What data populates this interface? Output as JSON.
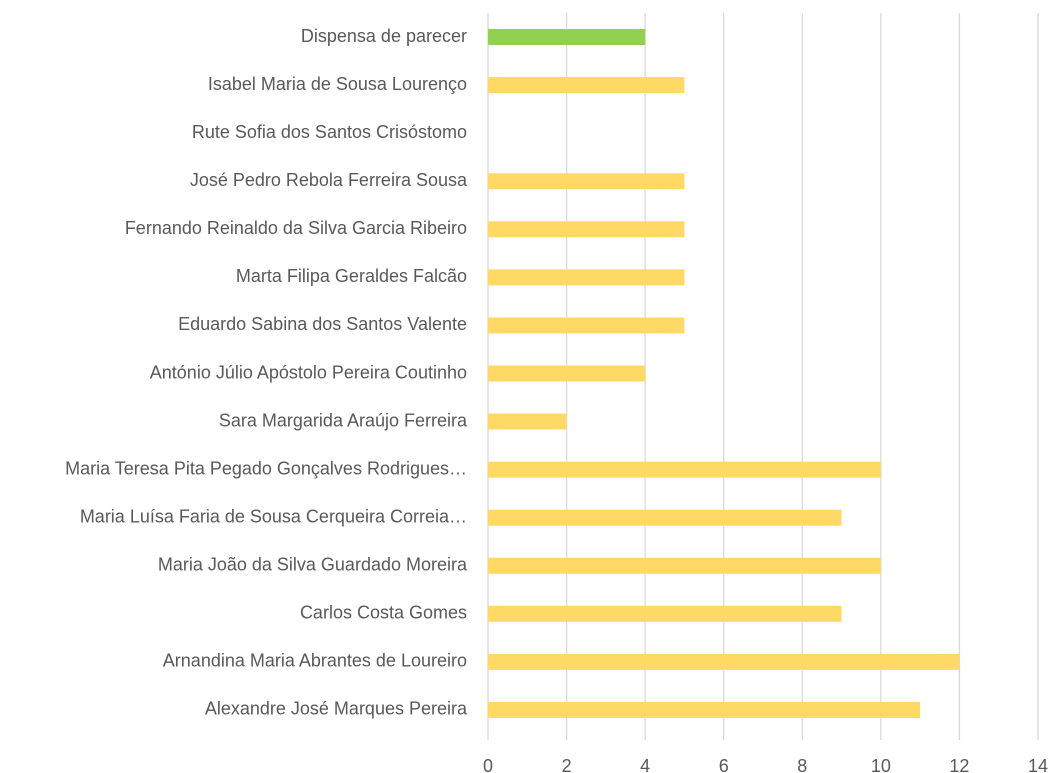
{
  "chart_data": {
    "type": "barh",
    "categories": [
      "Dispensa de parecer",
      "Isabel Maria de Sousa Lourenço",
      "Rute Sofia dos Santos Crisóstomo",
      "José Pedro Rebola Ferreira Sousa",
      "Fernando Reinaldo da Silva Garcia Ribeiro",
      "Marta Filipa Geraldes Falcão",
      "Eduardo Sabina dos Santos Valente",
      "António Júlio Apóstolo Pereira Coutinho",
      "Sara Margarida Araújo Ferreira",
      "Maria Teresa Pita Pegado Gonçalves Rodrigues…",
      "Maria Luísa Faria de Sousa Cerqueira Correia…",
      "Maria João da Silva Guardado Moreira",
      "Carlos Costa Gomes",
      "Arnandina Maria Abrantes de Loureiro",
      "Alexandre José Marques Pereira"
    ],
    "values": [
      4,
      5,
      0,
      5,
      5,
      5,
      5,
      4,
      2,
      10,
      9,
      10,
      9,
      12,
      11
    ],
    "colors": [
      "#92d050",
      "#ffd966",
      "#ffd966",
      "#ffd966",
      "#ffd966",
      "#ffd966",
      "#ffd966",
      "#ffd966",
      "#ffd966",
      "#ffd966",
      "#ffd966",
      "#ffd966",
      "#ffd966",
      "#ffd966",
      "#ffd966"
    ],
    "xlim": [
      0,
      14
    ],
    "xticks": [
      0,
      2,
      4,
      6,
      8,
      10,
      12,
      14
    ],
    "grid": true
  }
}
